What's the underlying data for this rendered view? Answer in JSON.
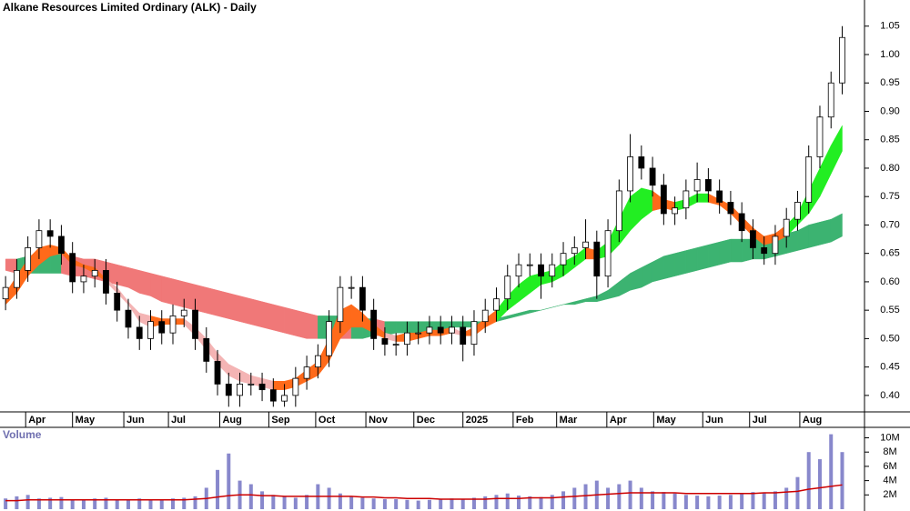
{
  "chart_data": {
    "type": "candlestick",
    "title": "Alkane Resources Limited Ordinary (ALK) - Daily",
    "open": [
      0.57,
      0.59,
      0.62,
      0.66,
      0.69,
      0.68,
      0.65,
      0.6,
      0.61,
      0.62,
      0.58,
      0.55,
      0.52,
      0.5,
      0.53,
      0.51,
      0.54,
      0.55,
      0.5,
      0.46,
      0.42,
      0.4,
      0.42,
      0.42,
      0.41,
      0.39,
      0.4,
      0.43,
      0.45,
      0.47,
      0.53,
      0.59,
      0.59,
      0.55,
      0.5,
      0.49,
      0.49,
      0.51,
      0.51,
      0.52,
      0.51,
      0.52,
      0.49,
      0.53,
      0.55,
      0.57,
      0.61,
      0.63,
      0.63,
      0.61,
      0.63,
      0.65,
      0.66,
      0.67,
      0.61,
      0.69,
      0.76,
      0.82,
      0.8,
      0.77,
      0.72,
      0.73,
      0.76,
      0.78,
      0.76,
      0.74,
      0.72,
      0.69,
      0.66,
      0.65,
      0.68,
      0.71,
      0.74,
      0.82,
      0.89,
      0.95
    ],
    "high": [
      0.61,
      0.64,
      0.68,
      0.71,
      0.71,
      0.7,
      0.67,
      0.63,
      0.64,
      0.64,
      0.6,
      0.57,
      0.54,
      0.55,
      0.55,
      0.56,
      0.57,
      0.57,
      0.52,
      0.48,
      0.44,
      0.44,
      0.44,
      0.44,
      0.43,
      0.42,
      0.45,
      0.47,
      0.49,
      0.55,
      0.61,
      0.61,
      0.61,
      0.57,
      0.52,
      0.51,
      0.53,
      0.53,
      0.54,
      0.54,
      0.54,
      0.54,
      0.55,
      0.57,
      0.59,
      0.63,
      0.65,
      0.65,
      0.65,
      0.65,
      0.67,
      0.68,
      0.71,
      0.69,
      0.71,
      0.78,
      0.86,
      0.84,
      0.82,
      0.79,
      0.75,
      0.78,
      0.81,
      0.8,
      0.78,
      0.76,
      0.74,
      0.71,
      0.68,
      0.7,
      0.73,
      0.76,
      0.84,
      0.91,
      0.97,
      1.05
    ],
    "low": [
      0.55,
      0.57,
      0.6,
      0.64,
      0.66,
      0.63,
      0.58,
      0.58,
      0.59,
      0.56,
      0.53,
      0.5,
      0.48,
      0.48,
      0.49,
      0.49,
      0.52,
      0.48,
      0.44,
      0.4,
      0.38,
      0.38,
      0.4,
      0.39,
      0.38,
      0.38,
      0.38,
      0.41,
      0.43,
      0.45,
      0.51,
      0.57,
      0.53,
      0.48,
      0.47,
      0.47,
      0.47,
      0.49,
      0.49,
      0.49,
      0.49,
      0.46,
      0.47,
      0.51,
      0.53,
      0.55,
      0.59,
      0.61,
      0.57,
      0.59,
      0.61,
      0.63,
      0.64,
      0.57,
      0.59,
      0.67,
      0.74,
      0.78,
      0.75,
      0.7,
      0.7,
      0.71,
      0.74,
      0.74,
      0.72,
      0.7,
      0.67,
      0.64,
      0.63,
      0.63,
      0.66,
      0.69,
      0.72,
      0.8,
      0.87,
      0.93
    ],
    "close": [
      0.59,
      0.62,
      0.66,
      0.69,
      0.68,
      0.65,
      0.6,
      0.61,
      0.62,
      0.58,
      0.55,
      0.52,
      0.5,
      0.53,
      0.51,
      0.54,
      0.55,
      0.5,
      0.46,
      0.42,
      0.4,
      0.42,
      0.42,
      0.41,
      0.39,
      0.4,
      0.43,
      0.45,
      0.47,
      0.53,
      0.59,
      0.59,
      0.55,
      0.5,
      0.49,
      0.49,
      0.51,
      0.51,
      0.52,
      0.51,
      0.52,
      0.49,
      0.53,
      0.55,
      0.57,
      0.61,
      0.63,
      0.63,
      0.61,
      0.63,
      0.65,
      0.66,
      0.67,
      0.61,
      0.69,
      0.76,
      0.82,
      0.8,
      0.77,
      0.72,
      0.73,
      0.76,
      0.78,
      0.76,
      0.74,
      0.72,
      0.69,
      0.66,
      0.65,
      0.68,
      0.71,
      0.74,
      0.82,
      0.89,
      0.95,
      1.03
    ],
    "candle_up_color": "#ffffff",
    "candle_down_color": "#000000",
    "long_band": {
      "upper": [
        0.64,
        0.64,
        0.645,
        0.65,
        0.65,
        0.65,
        0.645,
        0.64,
        0.64,
        0.635,
        0.63,
        0.625,
        0.62,
        0.615,
        0.61,
        0.605,
        0.6,
        0.595,
        0.59,
        0.585,
        0.58,
        0.575,
        0.57,
        0.565,
        0.56,
        0.555,
        0.55,
        0.545,
        0.54,
        0.54,
        0.54,
        0.535,
        0.535,
        0.535,
        0.53,
        0.53,
        0.53,
        0.53,
        0.53,
        0.53,
        0.53,
        0.53,
        0.53,
        0.53,
        0.535,
        0.54,
        0.545,
        0.55,
        0.55,
        0.555,
        0.56,
        0.565,
        0.57,
        0.575,
        0.585,
        0.6,
        0.615,
        0.625,
        0.635,
        0.645,
        0.65,
        0.655,
        0.66,
        0.665,
        0.67,
        0.675,
        0.675,
        0.675,
        0.675,
        0.68,
        0.685,
        0.69,
        0.7,
        0.705,
        0.71,
        0.72
      ],
      "lower": [
        0.62,
        0.615,
        0.615,
        0.615,
        0.615,
        0.615,
        0.61,
        0.61,
        0.605,
        0.6,
        0.595,
        0.59,
        0.58,
        0.575,
        0.565,
        0.56,
        0.555,
        0.55,
        0.545,
        0.54,
        0.535,
        0.53,
        0.525,
        0.52,
        0.515,
        0.51,
        0.505,
        0.5,
        0.5,
        0.5,
        0.5,
        0.5,
        0.5,
        0.505,
        0.505,
        0.51,
        0.51,
        0.51,
        0.515,
        0.515,
        0.52,
        0.52,
        0.52,
        0.525,
        0.53,
        0.535,
        0.54,
        0.545,
        0.55,
        0.555,
        0.56,
        0.56,
        0.565,
        0.565,
        0.57,
        0.575,
        0.585,
        0.59,
        0.6,
        0.605,
        0.61,
        0.615,
        0.62,
        0.625,
        0.63,
        0.635,
        0.635,
        0.64,
        0.64,
        0.645,
        0.65,
        0.655,
        0.66,
        0.665,
        0.67,
        0.68
      ],
      "color_up": "#3cb371",
      "color_down": "#f07878"
    },
    "short_band": {
      "upper": [
        0.58,
        0.61,
        0.64,
        0.66,
        0.665,
        0.66,
        0.64,
        0.63,
        0.625,
        0.605,
        0.59,
        0.565,
        0.545,
        0.54,
        0.535,
        0.535,
        0.535,
        0.52,
        0.5,
        0.475,
        0.455,
        0.445,
        0.435,
        0.43,
        0.425,
        0.425,
        0.43,
        0.445,
        0.46,
        0.5,
        0.55,
        0.56,
        0.545,
        0.525,
        0.51,
        0.505,
        0.51,
        0.51,
        0.515,
        0.515,
        0.52,
        0.51,
        0.52,
        0.535,
        0.55,
        0.575,
        0.595,
        0.61,
        0.615,
        0.62,
        0.635,
        0.645,
        0.66,
        0.655,
        0.67,
        0.71,
        0.75,
        0.765,
        0.76,
        0.745,
        0.74,
        0.745,
        0.755,
        0.755,
        0.745,
        0.735,
        0.715,
        0.695,
        0.68,
        0.685,
        0.7,
        0.72,
        0.76,
        0.8,
        0.84,
        0.875
      ],
      "lower": [
        0.56,
        0.58,
        0.61,
        0.63,
        0.645,
        0.65,
        0.63,
        0.625,
        0.615,
        0.6,
        0.58,
        0.56,
        0.53,
        0.52,
        0.525,
        0.525,
        0.525,
        0.505,
        0.48,
        0.455,
        0.435,
        0.425,
        0.42,
        0.415,
        0.41,
        0.41,
        0.415,
        0.425,
        0.435,
        0.46,
        0.5,
        0.52,
        0.52,
        0.51,
        0.5,
        0.495,
        0.495,
        0.5,
        0.505,
        0.505,
        0.51,
        0.505,
        0.505,
        0.52,
        0.53,
        0.55,
        0.565,
        0.58,
        0.595,
        0.6,
        0.61,
        0.625,
        0.64,
        0.64,
        0.645,
        0.665,
        0.69,
        0.71,
        0.725,
        0.73,
        0.725,
        0.73,
        0.74,
        0.74,
        0.735,
        0.72,
        0.7,
        0.68,
        0.665,
        0.67,
        0.68,
        0.7,
        0.72,
        0.75,
        0.79,
        0.83
      ],
      "color_up": "#22ee22",
      "color_down": "#f4b4b4",
      "color_mixed": "#ff6a1a"
    },
    "xlim": [
      -0.5,
      77
    ],
    "xticks": [
      {
        "value": 1.8,
        "label": "Apr"
      },
      {
        "value": 6.0,
        "label": "May"
      },
      {
        "value": 10.6,
        "label": "Jun"
      },
      {
        "value": 14.6,
        "label": "Jul"
      },
      {
        "value": 19.2,
        "label": "Aug"
      },
      {
        "value": 23.6,
        "label": "Sep"
      },
      {
        "value": 27.8,
        "label": "Oct"
      },
      {
        "value": 32.3,
        "label": "Nov"
      },
      {
        "value": 36.6,
        "label": "Dec"
      },
      {
        "value": 41.0,
        "label": "2025"
      },
      {
        "value": 45.5,
        "label": "Feb"
      },
      {
        "value": 49.4,
        "label": "Mar"
      },
      {
        "value": 53.9,
        "label": "Apr"
      },
      {
        "value": 58.1,
        "label": "May"
      },
      {
        "value": 62.5,
        "label": "Jun"
      },
      {
        "value": 66.7,
        "label": "Jul"
      },
      {
        "value": 71.2,
        "label": "Aug"
      }
    ],
    "ylim": [
      0.371,
      1.096
    ],
    "yticks": [
      {
        "value": 0.4,
        "label": "0.40"
      },
      {
        "value": 0.45,
        "label": "0.45"
      },
      {
        "value": 0.5,
        "label": "0.50"
      },
      {
        "value": 0.55,
        "label": "0.55"
      },
      {
        "value": 0.6,
        "label": "0.60"
      },
      {
        "value": 0.65,
        "label": "0.65"
      },
      {
        "value": 0.7,
        "label": "0.70"
      },
      {
        "value": 0.75,
        "label": "0.75"
      },
      {
        "value": 0.8,
        "label": "0.80"
      },
      {
        "value": 0.85,
        "label": "0.85"
      },
      {
        "value": 0.9,
        "label": "0.90"
      },
      {
        "value": 0.95,
        "label": "0.95"
      },
      {
        "value": 1.0,
        "label": "1.00"
      },
      {
        "value": 1.05,
        "label": "1.05"
      }
    ],
    "volume": {
      "label": "Volume",
      "color": "#8888cc",
      "ma_color": "#cc0000",
      "values": [
        1.5,
        1.8,
        2.0,
        1.5,
        1.6,
        1.7,
        1.4,
        1.3,
        1.5,
        1.6,
        1.4,
        1.3,
        1.5,
        1.4,
        1.3,
        1.5,
        1.6,
        1.8,
        3.0,
        5.5,
        7.8,
        4.0,
        3.5,
        2.5,
        2.0,
        1.8,
        1.6,
        2.0,
        3.5,
        3.0,
        2.2,
        1.8,
        1.6,
        1.5,
        1.4,
        1.4,
        1.3,
        1.2,
        1.3,
        1.4,
        1.5,
        1.4,
        1.6,
        1.8,
        2.0,
        2.2,
        1.9,
        1.8,
        1.7,
        2.0,
        2.5,
        3.0,
        3.5,
        4.0,
        3.0,
        3.5,
        4.0,
        3.0,
        2.5,
        2.4,
        2.2,
        2.0,
        1.9,
        1.8,
        1.9,
        2.0,
        2.2,
        2.4,
        2.3,
        2.5,
        3.0,
        4.5,
        8.0,
        7.0,
        10.5,
        8.0
      ],
      "ma": [
        1.2,
        1.2,
        1.3,
        1.3,
        1.3,
        1.3,
        1.3,
        1.3,
        1.3,
        1.3,
        1.3,
        1.3,
        1.3,
        1.3,
        1.3,
        1.3,
        1.3,
        1.4,
        1.5,
        1.7,
        1.9,
        2.0,
        2.0,
        1.9,
        1.9,
        1.8,
        1.8,
        1.8,
        1.8,
        1.8,
        1.8,
        1.8,
        1.7,
        1.7,
        1.6,
        1.6,
        1.5,
        1.5,
        1.5,
        1.4,
        1.4,
        1.4,
        1.4,
        1.4,
        1.5,
        1.5,
        1.5,
        1.6,
        1.6,
        1.6,
        1.7,
        1.8,
        1.9,
        2.0,
        2.1,
        2.2,
        2.3,
        2.3,
        2.3,
        2.3,
        2.3,
        2.2,
        2.2,
        2.2,
        2.2,
        2.2,
        2.2,
        2.2,
        2.3,
        2.3,
        2.4,
        2.5,
        2.8,
        3.0,
        3.2,
        3.4
      ],
      "ylim": [
        0,
        10.7
      ],
      "yticks": [
        {
          "value": 2,
          "label": "2M"
        },
        {
          "value": 4,
          "label": "4M"
        },
        {
          "value": 6,
          "label": "6M"
        },
        {
          "value": 8,
          "label": "8M"
        },
        {
          "value": 10,
          "label": "10M"
        }
      ]
    }
  }
}
